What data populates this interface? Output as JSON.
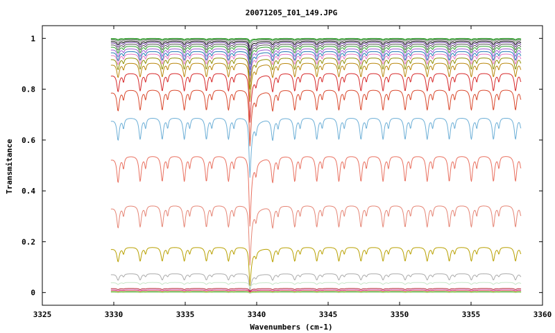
{
  "chart_data": {
    "type": "line",
    "title": "20071205_I01_149.JPG",
    "xlabel": "Wavenumbers (cm-1)",
    "ylabel": "Transmitance",
    "xlim": [
      3325,
      3360
    ],
    "ylim": [
      -0.05,
      1.05
    ],
    "xticks": [
      3325,
      3330,
      3335,
      3340,
      3345,
      3350,
      3355,
      3360
    ],
    "yticks": [
      0,
      0.2,
      0.4,
      0.6,
      0.8,
      1
    ],
    "ytick_labels": [
      "0",
      "0.2",
      "0.4",
      "0.6",
      "0.8",
      "1"
    ],
    "grid": false,
    "legend": "none",
    "x_range": [
      3329.8,
      3358.5
    ],
    "line_spacing_cm": 1.545,
    "line_start_cm": 3330.3,
    "major_dip_cm": 3339.5,
    "series": [
      {
        "color": "#33a02c",
        "base": 1.0,
        "depth": 0.004
      },
      {
        "color": "#2b8c2b",
        "base": 0.998,
        "depth": 0.006
      },
      {
        "color": "#7f7f7f",
        "base": 0.995,
        "depth": 0.01
      },
      {
        "color": "#000000",
        "base": 0.99,
        "depth": 0.014
      },
      {
        "color": "#6a3d9a",
        "base": 0.985,
        "depth": 0.018
      },
      {
        "color": "#555555",
        "base": 0.978,
        "depth": 0.022
      },
      {
        "color": "#2ca02c",
        "base": 0.97,
        "depth": 0.026
      },
      {
        "color": "#9b59d0",
        "base": 0.96,
        "depth": 0.03
      },
      {
        "color": "#1f78b4",
        "base": 0.95,
        "depth": 0.035
      },
      {
        "color": "#e377c2",
        "base": 0.94,
        "depth": 0.04
      },
      {
        "color": "#8c8c00",
        "base": 0.925,
        "depth": 0.045
      },
      {
        "color": "#b8860b",
        "base": 0.905,
        "depth": 0.055
      },
      {
        "color": "#d62728",
        "base": 0.865,
        "depth": 0.07
      },
      {
        "color": "#d9472b",
        "base": 0.8,
        "depth": 0.08
      },
      {
        "color": "#6baed6",
        "base": 0.69,
        "depth": 0.085
      },
      {
        "color": "#e9705f",
        "base": 0.54,
        "depth": 0.1
      },
      {
        "color": "#e58474",
        "base": 0.345,
        "depth": 0.085
      },
      {
        "color": "#b8a000",
        "base": 0.18,
        "depth": 0.055
      },
      {
        "color": "#aaaaaa",
        "base": 0.075,
        "depth": 0.025
      },
      {
        "color": "#c8e6c8",
        "base": 0.04,
        "depth": 0.008
      },
      {
        "color": "#b2182b",
        "base": 0.016,
        "depth": 0.004
      },
      {
        "color": "#c71585",
        "base": 0.01,
        "depth": 0.003
      },
      {
        "color": "#e6b800",
        "base": 0.005,
        "depth": 0.002
      },
      {
        "color": "#1f9e89",
        "base": 0.003,
        "depth": 0.002
      },
      {
        "color": "#b2df8a",
        "base": 0.001,
        "depth": 0.001
      }
    ]
  }
}
